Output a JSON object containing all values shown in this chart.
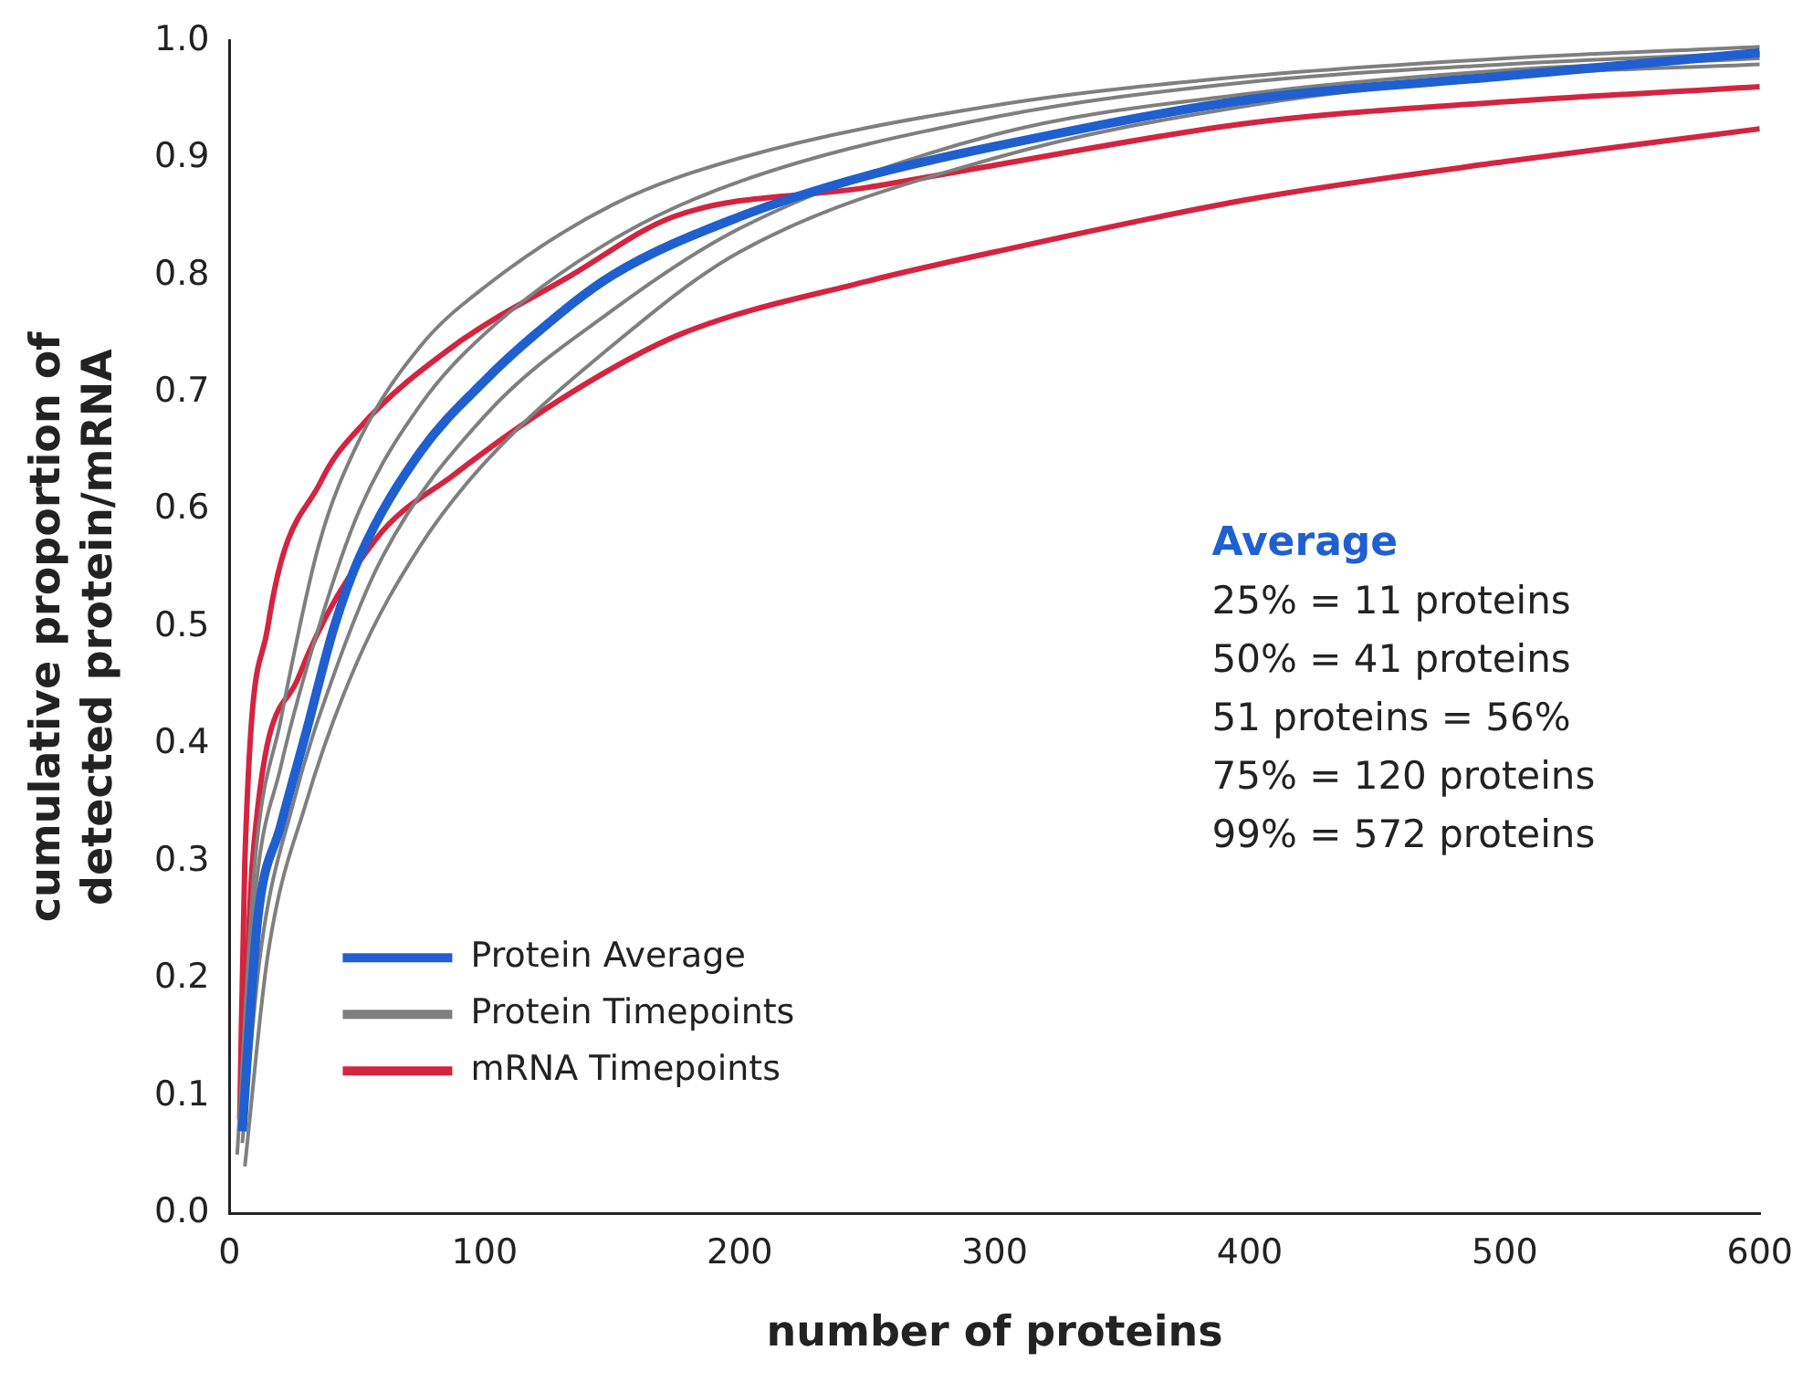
{
  "chart_data": {
    "type": "line",
    "xlabel": "number of proteins",
    "ylabel": "cumulative proportion of\ndetected protein/mRNA",
    "xlim": [
      0,
      600
    ],
    "xticks": [
      0,
      100,
      200,
      300,
      400,
      500,
      600
    ],
    "ylim": [
      0,
      1
    ],
    "yticks": [
      {
        "value": 0,
        "label": "0.0"
      },
      0.1,
      0.2,
      0.3,
      0.4,
      0.5,
      0.6,
      0.7,
      0.8,
      0.9,
      {
        "value": 1,
        "label": "1.0"
      }
    ],
    "grid": false,
    "legend": "bottom left",
    "marker": "none",
    "line_style": "solid",
    "annotations": [
      "Average",
      "25% = 11 proteins",
      "50% = 41 proteins",
      "51 proteins = 56%",
      "75% = 120 proteins",
      "99% = 572 proteins"
    ],
    "series": [
      {
        "name": "Protein Average",
        "color": "#1f5fd0",
        "x": [
          5,
          11,
          20,
          30,
          41,
          51,
          75,
          100,
          120,
          150,
          200,
          250,
          300,
          400,
          500,
          600
        ],
        "values": [
          0.07,
          0.25,
          0.33,
          0.41,
          0.5,
          0.56,
          0.65,
          0.71,
          0.75,
          0.8,
          0.85,
          0.885,
          0.91,
          0.95,
          0.97,
          0.99
        ]
      },
      {
        "name": "Protein Timepoints",
        "color": "#7f7f7f",
        "x": [
          3,
          10,
          20,
          35,
          51,
          75,
          100,
          150,
          200,
          300,
          400,
          500,
          600
        ],
        "values": [
          0.05,
          0.3,
          0.42,
          0.57,
          0.66,
          0.74,
          0.79,
          0.86,
          0.9,
          0.945,
          0.97,
          0.985,
          0.995
        ]
      },
      {
        "color": "#7f7f7f",
        "x": [
          4,
          10,
          20,
          35,
          51,
          75,
          100,
          150,
          200,
          300,
          400,
          500,
          600
        ],
        "values": [
          0.07,
          0.27,
          0.38,
          0.5,
          0.6,
          0.69,
          0.75,
          0.83,
          0.88,
          0.935,
          0.965,
          0.98,
          0.99
        ]
      },
      {
        "color": "#7f7f7f",
        "x": [
          5,
          12,
          25,
          41,
          60,
          100,
          150,
          200,
          300,
          400,
          500,
          600
        ],
        "values": [
          0.06,
          0.22,
          0.35,
          0.46,
          0.56,
          0.68,
          0.77,
          0.84,
          0.92,
          0.955,
          0.975,
          0.985
        ]
      },
      {
        "color": "#7f7f7f",
        "x": [
          6,
          15,
          30,
          50,
          75,
          100,
          150,
          200,
          300,
          400,
          500,
          600
        ],
        "values": [
          0.04,
          0.22,
          0.35,
          0.47,
          0.57,
          0.64,
          0.74,
          0.82,
          0.9,
          0.945,
          0.97,
          0.98
        ]
      },
      {
        "name": "mRNA Timepoints",
        "color": "#d4243f",
        "x": [
          4,
          6,
          15,
          36,
          51,
          88,
          134,
          174,
          250,
          300,
          400,
          500,
          600
        ],
        "values": [
          0.08,
          0.3,
          0.5,
          0.625,
          0.67,
          0.74,
          0.8,
          0.85,
          0.875,
          0.894,
          0.93,
          0.948,
          0.961
        ]
      },
      {
        "color": "#d4243f",
        "x": [
          5,
          9,
          27,
          57,
          88,
          134,
          177,
          250,
          300,
          400,
          500,
          600
        ],
        "values": [
          0.1,
          0.3,
          0.457,
          0.574,
          0.63,
          0.7,
          0.75,
          0.795,
          0.82,
          0.865,
          0.897,
          0.925
        ]
      }
    ]
  }
}
